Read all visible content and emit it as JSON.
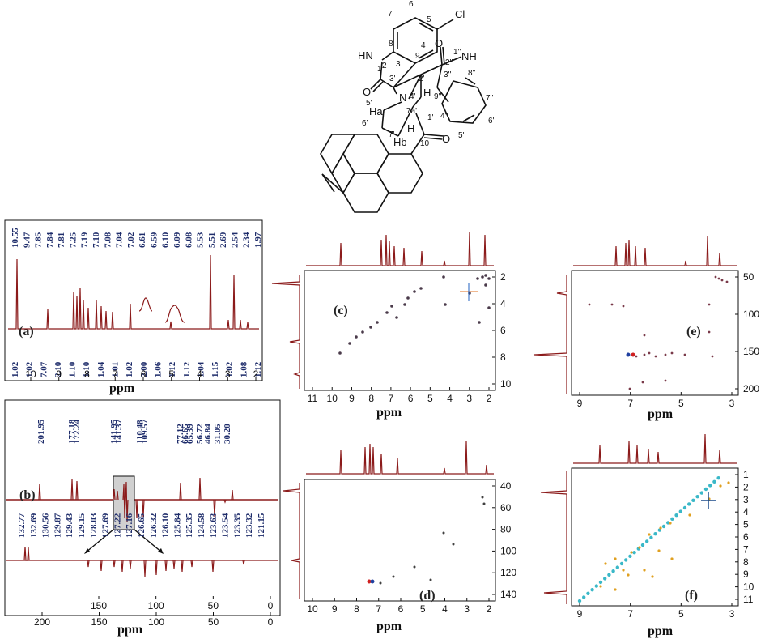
{
  "structure": {
    "atoms": [
      "Cl",
      "HN",
      "1",
      "2",
      "3",
      "O",
      "3'",
      "4",
      "5",
      "6",
      "7",
      "8",
      "9",
      "O",
      "1''",
      "2''",
      "NH",
      "3''",
      "2'",
      "N",
      "4'",
      "5'",
      "6'",
      "H",
      "H",
      "Ha",
      "Hb",
      "7'",
      "7a'",
      "1'",
      "10",
      "O",
      "4''",
      "5''",
      "6''",
      "7''",
      "8''",
      "9''"
    ]
  },
  "panels": {
    "a": {
      "label": "(a)",
      "xticks": [
        "10",
        "9",
        "8",
        "7",
        "6",
        "5",
        "4",
        "3",
        "2"
      ],
      "xlabel": "ppm",
      "peaks": [
        "10.55",
        "9.47",
        "7.85",
        "7.84",
        "7.81",
        "7.25",
        "7.19",
        "7.10",
        "7.08",
        "7.04",
        "7.02",
        "6.61",
        "6.59",
        "6.10",
        "6.09",
        "6.08",
        "5.53",
        "5.51",
        "2.69",
        "2.54",
        "2.34",
        "1.97"
      ],
      "integrals": [
        "1.02",
        "1.02",
        "7.07",
        "2.10",
        "1.10",
        "1.10",
        "1.04",
        "1.01",
        "1.02",
        "2.00",
        "1.06",
        "1.12",
        "1.12",
        "1.04",
        "1.15",
        "1.02",
        "1.08",
        "1.12"
      ]
    },
    "b": {
      "label": "(b)",
      "xticks": [
        "200",
        "150",
        "100",
        "50",
        "0"
      ],
      "xlabel": "ppm",
      "peaks_top": [
        "201.95",
        "177.18",
        "172.24",
        "141.95",
        "141.37",
        "110.48",
        "109.57",
        "77.12",
        "66.65",
        "65.39",
        "56.72",
        "46.84",
        "31.05",
        "30.20"
      ],
      "peaks_bottom": [
        "132.77",
        "132.69",
        "130.56",
        "129.87",
        "129.43",
        "129.15",
        "128.03",
        "127.69",
        "127.22",
        "127.16",
        "126.65",
        "126.32",
        "126.10",
        "125.84",
        "125.35",
        "124.58",
        "123.63",
        "123.54",
        "123.35",
        "123.32",
        "121.15"
      ],
      "inset_xticks": [
        "150",
        "100",
        "50",
        "0"
      ],
      "inset_xlabel": "ppm"
    },
    "c": {
      "label": "(c)",
      "xticks": [
        "11",
        "10",
        "9",
        "8",
        "7",
        "6",
        "5",
        "4",
        "3",
        "2"
      ],
      "yticks": [
        "2",
        "4",
        "6",
        "8",
        "10"
      ],
      "xlabel": "ppm"
    },
    "d": {
      "label": "(d)",
      "xticks": [
        "10",
        "9",
        "8",
        "7",
        "6",
        "5",
        "4",
        "3",
        "2"
      ],
      "yticks": [
        "40",
        "60",
        "80",
        "100",
        "120",
        "140"
      ],
      "xlabel": "ppm"
    },
    "e": {
      "label": "(e)",
      "xticks": [
        "9",
        "7",
        "5",
        "3"
      ],
      "yticks": [
        "50",
        "100",
        "150",
        "200"
      ],
      "xlabel": "ppm"
    },
    "f": {
      "label": "(f)",
      "xticks": [
        "9",
        "7",
        "5",
        "3"
      ],
      "yticks": [
        "1",
        "2",
        "3",
        "4",
        "5",
        "6",
        "7",
        "8",
        "9",
        "10",
        "11"
      ],
      "xlabel": "ppm"
    }
  },
  "colors": {
    "spectrum": "#8b1a1a",
    "peak_labels": "#1f2d6b",
    "cosy_cross": "#3ab8c8",
    "hsqc_neg": "#d02020",
    "hsqc_pos": "#2040a0"
  }
}
